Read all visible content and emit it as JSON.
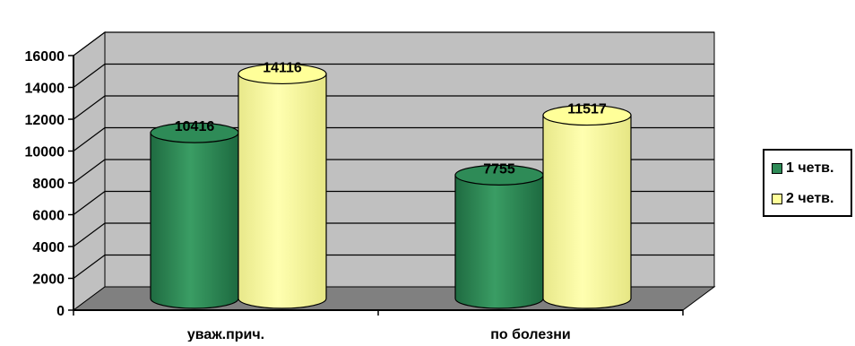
{
  "chart_data": {
    "type": "bar",
    "style": "3d-cylinder",
    "categories": [
      "уваж.прич.",
      "по болезни"
    ],
    "series": [
      {
        "name": "1 четв.",
        "values": [
          10416,
          7755
        ],
        "color": "#2e8b57"
      },
      {
        "name": "2 четв.",
        "values": [
          14116,
          11517
        ],
        "color": "#ffff99"
      }
    ],
    "data_labels": true,
    "ylim": [
      0,
      16000
    ],
    "yticks": [
      0,
      2000,
      4000,
      6000,
      8000,
      10000,
      12000,
      14000,
      16000
    ],
    "grid": true,
    "legend_position": "right",
    "wall_color": "#c0c0c0",
    "floor_color": "#808080"
  }
}
